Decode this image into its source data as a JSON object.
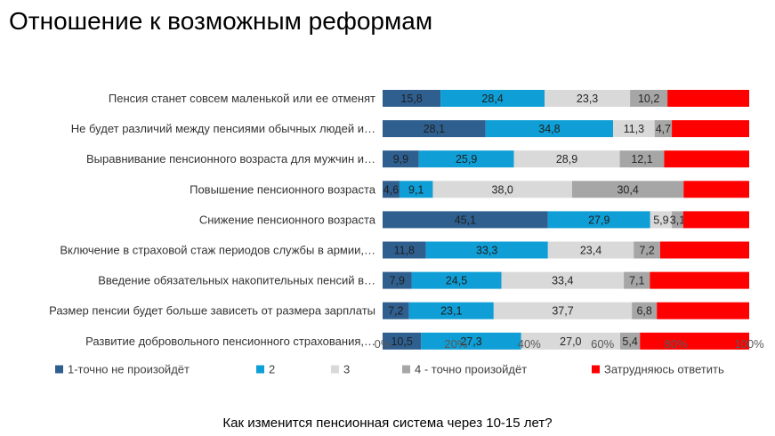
{
  "title": "Отношение к возможным реформам",
  "caption": "Как изменится пенсионная система через 10-15 лет?",
  "chart_data": {
    "type": "bar",
    "orientation": "horizontal",
    "stacked": "percent",
    "categories": [
      "Пенсия станет совсем маленькой или ее отменят",
      "Не будет различий между пенсиями обычных людей и…",
      "Выравнивание пенсионного возраста для мужчин и…",
      "Повышение пенсионного возраста",
      "Снижение пенсионного возраста",
      "Включение в страховой стаж периодов службы в армии,…",
      "Введение обязательных накопительных пенсий в…",
      "Размер пенсии будет больше зависеть от размера зарплаты",
      "Развитие добровольного пенсионного страхования,…"
    ],
    "series": [
      {
        "name": "1-точно не произойдёт",
        "color": "#2E5F8F",
        "label_color": "#1F1F1F",
        "values": [
          15.8,
          28.1,
          9.9,
          4.6,
          45.1,
          11.8,
          7.9,
          7.2,
          10.5
        ],
        "labels": [
          "15,8",
          "28,1",
          "9,9",
          "4,6",
          "45,1",
          "11,8",
          "7,9",
          "7,2",
          "10,5"
        ]
      },
      {
        "name": "2",
        "color": "#0F9ED5",
        "label_color": "#1F1F1F",
        "values": [
          28.4,
          34.8,
          25.9,
          9.1,
          27.9,
          33.3,
          24.5,
          23.1,
          27.3
        ],
        "labels": [
          "28,4",
          "34,8",
          "25,9",
          "9,1",
          "27,9",
          "33,3",
          "24,5",
          "23,1",
          "27,3"
        ]
      },
      {
        "name": "3",
        "color": "#D9D9D9",
        "label_color": "#262626",
        "values": [
          23.3,
          11.3,
          28.9,
          38.0,
          5.9,
          23.4,
          33.4,
          37.7,
          27.0
        ],
        "labels": [
          "23,3",
          "11,3",
          "28,9",
          "38,0",
          "5,9",
          "23,4",
          "33,4",
          "37,7",
          "27,0"
        ]
      },
      {
        "name": "4 - точно произойдёт",
        "color": "#A6A6A6",
        "label_color": "#262626",
        "values": [
          10.2,
          4.7,
          12.1,
          30.4,
          3.1,
          7.2,
          7.1,
          6.8,
          5.4
        ],
        "labels": [
          "10,2",
          "4,7",
          "12,1",
          "30,4",
          "3,1",
          "7,2",
          "7,1",
          "6,8",
          "5,4"
        ]
      },
      {
        "name": "Затрудняюсь ответить",
        "color": "#FF0000",
        "label_color": "#FFFFFF",
        "values": [
          22.3,
          21.1,
          23.2,
          17.9,
          18.0,
          24.3,
          27.1,
          25.2,
          29.8
        ],
        "labels": [
          "",
          "",
          "",
          "",
          "",
          "",
          "",
          "",
          ""
        ]
      }
    ],
    "x_ticks": [
      "0%",
      "20%",
      "40%",
      "60%",
      "80%",
      "100%"
    ],
    "xlim": [
      0,
      100
    ],
    "grid": false,
    "legend": "bottom"
  }
}
